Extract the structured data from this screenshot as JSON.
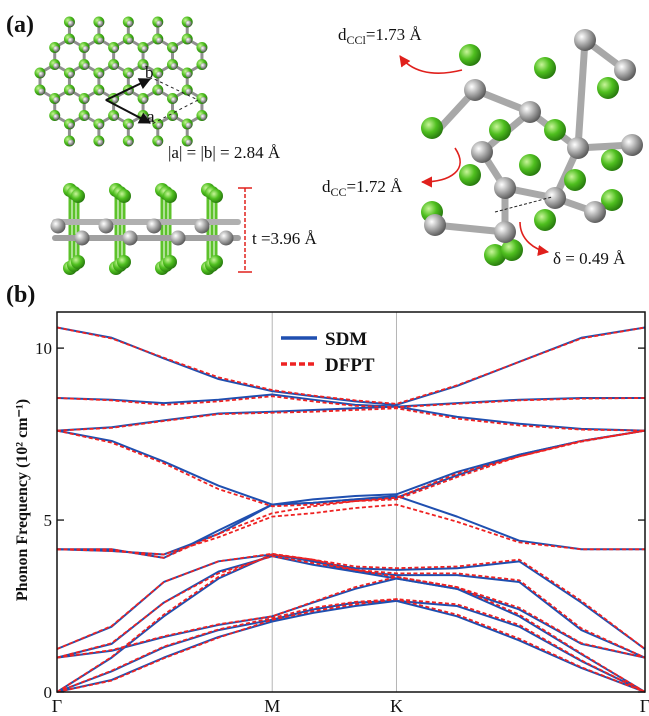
{
  "panel_a": {
    "label": "(a)",
    "vector_labels": [
      "b",
      "a"
    ],
    "lattice": "|a| = |b| = 2.84 Å",
    "thickness": "t =3.96 Å",
    "bond_ccl": {
      "symbol": "d",
      "subscript": "CCl",
      "text": "=1.73 Å"
    },
    "bond_cc": {
      "symbol": "d",
      "subscript": "CC",
      "text": "=1.72 Å"
    },
    "buckling": "δ = 0.49 Å"
  },
  "chart_data": {
    "type": "line",
    "panel_label": "(b)",
    "y_label": "Phonon Frequency (10² cm⁻¹)",
    "x": [
      0,
      0.22,
      0.43,
      0.65,
      0.866,
      1.03,
      1.2,
      1.366,
      1.61,
      1.86,
      2.11,
      2.366
    ],
    "xlim": [
      0,
      2.366
    ],
    "xticks": [
      {
        "value": 0,
        "label": "Γ"
      },
      {
        "value": 0.866,
        "label": "M"
      },
      {
        "value": 1.366,
        "label": "K"
      },
      {
        "value": 2.366,
        "label": "Γ"
      }
    ],
    "ylim": [
      0,
      11.05
    ],
    "yticks": [
      0,
      5,
      10
    ],
    "grid": true,
    "legend": "top",
    "series": [
      {
        "name": "SDM",
        "color": "#1f4fb0",
        "dash": "solid",
        "bands": [
          [
            0,
            0.35,
            1.0,
            1.6,
            2.05,
            2.3,
            2.5,
            2.65,
            2.2,
            1.5,
            0.7,
            0
          ],
          [
            0,
            0.6,
            1.3,
            1.8,
            2.1,
            2.4,
            2.6,
            2.65,
            2.5,
            1.9,
            0.9,
            0
          ],
          [
            0,
            1.0,
            2.2,
            3.3,
            4.0,
            3.8,
            3.5,
            3.3,
            3.0,
            2.2,
            1.1,
            0
          ],
          [
            1.0,
            1.2,
            1.6,
            1.95,
            2.2,
            2.6,
            3.0,
            3.3,
            3.0,
            2.4,
            1.4,
            1.0
          ],
          [
            1.0,
            1.4,
            2.6,
            3.5,
            3.95,
            3.7,
            3.5,
            3.4,
            3.4,
            3.2,
            1.8,
            1.0
          ],
          [
            1.25,
            1.9,
            3.2,
            3.8,
            4.0,
            3.8,
            3.6,
            3.55,
            3.6,
            3.8,
            2.6,
            1.25
          ],
          [
            4.15,
            4.1,
            4.0,
            4.6,
            5.45,
            5.5,
            5.6,
            5.7,
            5.1,
            4.4,
            4.15,
            4.15
          ],
          [
            4.15,
            4.15,
            3.9,
            4.7,
            5.45,
            5.6,
            5.7,
            5.75,
            6.4,
            6.9,
            7.3,
            7.6
          ],
          [
            7.6,
            7.3,
            6.7,
            6.0,
            5.45,
            5.5,
            5.6,
            5.65,
            6.3,
            6.9,
            7.3,
            7.6
          ],
          [
            7.6,
            7.7,
            7.9,
            8.1,
            8.15,
            8.2,
            8.25,
            8.3,
            8.0,
            7.8,
            7.65,
            7.6
          ],
          [
            8.55,
            8.5,
            8.4,
            8.5,
            8.65,
            8.5,
            8.35,
            8.3,
            8.4,
            8.5,
            8.55,
            8.55
          ],
          [
            10.6,
            10.3,
            9.7,
            9.1,
            8.75,
            8.6,
            8.45,
            8.35,
            8.9,
            9.6,
            10.3,
            10.6
          ]
        ]
      },
      {
        "name": "DFPT",
        "color": "#ee2222",
        "dash": "dashed",
        "bands": [
          [
            0,
            0.33,
            0.98,
            1.58,
            2.1,
            2.35,
            2.55,
            2.7,
            2.25,
            1.55,
            0.72,
            0
          ],
          [
            0,
            0.62,
            1.32,
            1.82,
            2.15,
            2.45,
            2.62,
            2.7,
            2.55,
            1.95,
            0.92,
            0
          ],
          [
            0,
            1.02,
            2.25,
            3.35,
            4.0,
            3.85,
            3.55,
            3.35,
            3.05,
            2.25,
            1.12,
            0
          ],
          [
            1.0,
            1.22,
            1.62,
            1.97,
            2.2,
            2.62,
            3.05,
            3.35,
            3.05,
            2.45,
            1.42,
            1.0
          ],
          [
            1.0,
            1.42,
            2.6,
            3.45,
            3.95,
            3.75,
            3.55,
            3.45,
            3.45,
            3.25,
            1.85,
            1.0
          ],
          [
            1.25,
            1.92,
            3.2,
            3.8,
            4.02,
            3.85,
            3.65,
            3.6,
            3.65,
            3.85,
            2.65,
            1.25
          ],
          [
            4.15,
            4.1,
            4.0,
            4.5,
            5.1,
            5.2,
            5.35,
            5.45,
            4.95,
            4.35,
            4.15,
            4.15
          ],
          [
            4.15,
            4.15,
            3.9,
            4.6,
            5.2,
            5.4,
            5.55,
            5.65,
            6.35,
            6.85,
            7.3,
            7.6
          ],
          [
            7.6,
            7.25,
            6.65,
            5.9,
            5.4,
            5.45,
            5.55,
            5.6,
            6.25,
            6.85,
            7.28,
            7.6
          ],
          [
            7.6,
            7.68,
            7.88,
            8.08,
            8.12,
            8.15,
            8.2,
            8.25,
            7.95,
            7.75,
            7.63,
            7.6
          ],
          [
            8.55,
            8.48,
            8.35,
            8.45,
            8.6,
            8.45,
            8.32,
            8.28,
            8.38,
            8.48,
            8.53,
            8.55
          ],
          [
            10.6,
            10.28,
            9.72,
            9.15,
            8.78,
            8.62,
            8.48,
            8.38,
            8.92,
            9.6,
            10.28,
            10.6
          ]
        ]
      }
    ]
  }
}
